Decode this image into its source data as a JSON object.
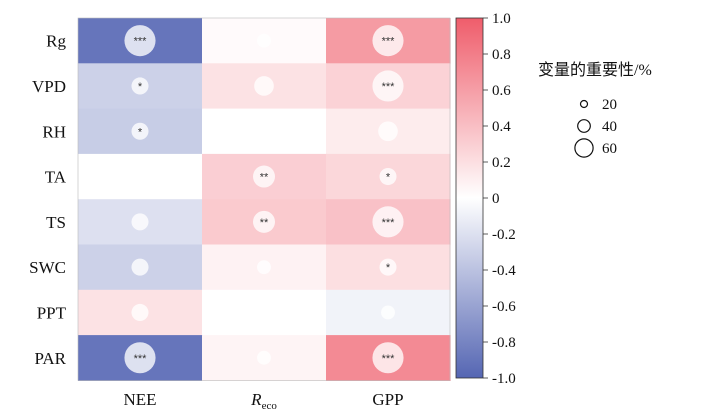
{
  "chart_data": {
    "type": "heatmap",
    "rows": [
      "Rg",
      "VPD",
      "RH",
      "TA",
      "TS",
      "SWC",
      "PPT",
      "PAR"
    ],
    "columns": [
      {
        "label": "NEE"
      },
      {
        "label": "R",
        "sub": "eco",
        "italic": true
      },
      {
        "label": "GPP"
      }
    ],
    "values": [
      [
        -0.9,
        0.03,
        0.62
      ],
      [
        -0.3,
        0.18,
        0.28
      ],
      [
        -0.33,
        0.0,
        0.12
      ],
      [
        0.0,
        0.3,
        0.25
      ],
      [
        -0.2,
        0.33,
        0.38
      ],
      [
        -0.3,
        0.08,
        0.2
      ],
      [
        0.18,
        0.0,
        -0.08
      ],
      [
        -0.9,
        0.07,
        0.72
      ]
    ],
    "importance": [
      [
        50,
        10,
        50
      ],
      [
        15,
        20,
        50
      ],
      [
        15,
        0,
        20
      ],
      [
        0,
        25,
        15
      ],
      [
        15,
        25,
        50
      ],
      [
        15,
        10,
        15
      ],
      [
        15,
        0,
        10
      ],
      [
        50,
        10,
        50
      ]
    ],
    "significance": [
      [
        "***",
        "",
        "***"
      ],
      [
        "*",
        "",
        "***"
      ],
      [
        "*",
        "",
        ""
      ],
      [
        "",
        "**",
        "*"
      ],
      [
        "",
        "**",
        "***"
      ],
      [
        "",
        "",
        "*"
      ],
      [
        "",
        "",
        ""
      ],
      [
        "***",
        "",
        "***"
      ]
    ],
    "colorbar": {
      "min": -1.0,
      "max": 1.0,
      "ticks": [
        "1.0",
        "0.8",
        "0.6",
        "0.4",
        "0.2",
        "0",
        "-0.2",
        "-0.4",
        "-0.6",
        "-0.8",
        "-1.0"
      ],
      "colors": {
        "negative": "#5566b3",
        "zero": "#ffffff",
        "positive": "#ef5d6b"
      }
    },
    "legend": {
      "title": "变量的重要性/%",
      "position": "right",
      "items": [
        20,
        40,
        60
      ]
    }
  }
}
